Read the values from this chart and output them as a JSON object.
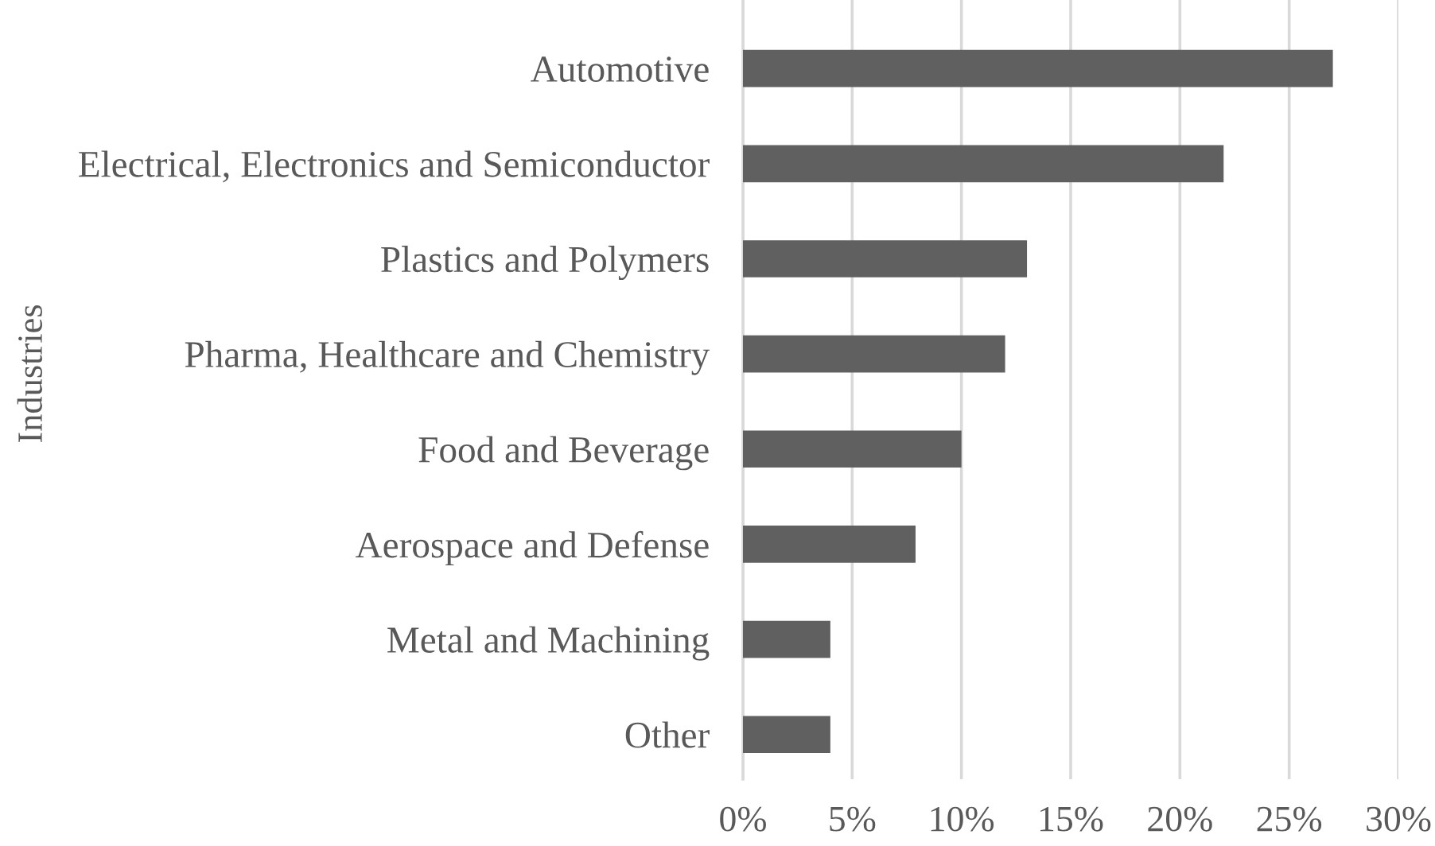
{
  "chart_data": {
    "type": "bar",
    "orientation": "horizontal",
    "ylabel": "Industries",
    "categories": [
      "Automotive",
      "Electrical, Electronics and Semiconductor",
      "Plastics and Polymers",
      "Pharma, Healthcare and Chemistry",
      "Food and Beverage",
      "Aerospace and Defense",
      "Metal and Machining",
      "Other"
    ],
    "values": [
      27,
      22,
      13,
      12,
      10,
      7.9,
      4,
      4
    ],
    "color": "#606060",
    "xlim": [
      0,
      30
    ],
    "xticks": [
      {
        "value": 0,
        "label": "0%"
      },
      {
        "value": 5,
        "label": "5%"
      },
      {
        "value": 10,
        "label": "10%"
      },
      {
        "value": 15,
        "label": "15%"
      },
      {
        "value": 20,
        "label": "20%"
      },
      {
        "value": 25,
        "label": "25%"
      },
      {
        "value": 30,
        "label": "30%"
      }
    ],
    "grid": "x"
  }
}
